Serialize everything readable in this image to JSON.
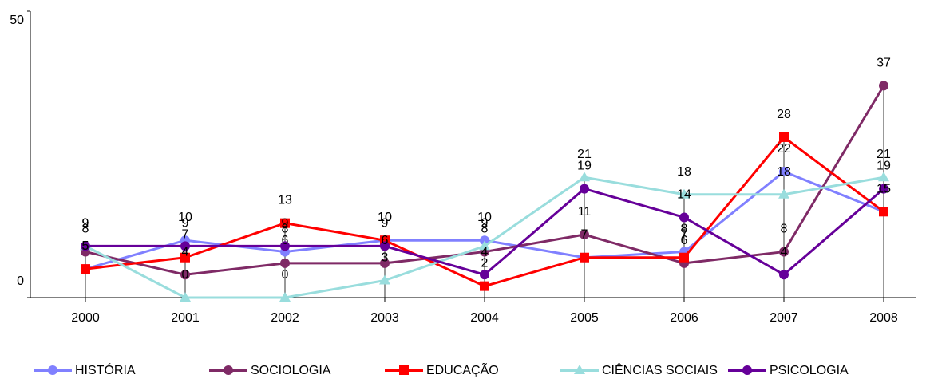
{
  "chart_data": {
    "type": "line",
    "title": "",
    "xlabel": "",
    "ylabel": "",
    "categories": [
      "2000",
      "2001",
      "2002",
      "2003",
      "2004",
      "2005",
      "2006",
      "2007",
      "2008"
    ],
    "ylim": [
      0,
      50
    ],
    "y_ticks": [
      "0",
      "50"
    ],
    "grid": false,
    "legend_position": "bottom",
    "series": [
      {
        "name": "HISTÓRIA",
        "color": "#8080ff",
        "marker": "circle",
        "values": [
          5,
          10,
          8,
          10,
          10,
          7,
          8,
          22,
          15
        ]
      },
      {
        "name": "SOCIOLOGIA",
        "color": "#7f2a66",
        "marker": "circle",
        "values": [
          8,
          4,
          6,
          6,
          8,
          11,
          6,
          8,
          37
        ]
      },
      {
        "name": "EDUCAÇÃO",
        "color": "#ff0000",
        "marker": "square",
        "values": [
          5,
          7,
          13,
          10,
          2,
          7,
          7,
          28,
          15
        ]
      },
      {
        "name": "CIÊNCIAS SOCIAIS",
        "color": "#99dddd",
        "marker": "triangle",
        "values": [
          9,
          0,
          0,
          3,
          9,
          21,
          18,
          18,
          21
        ]
      },
      {
        "name": "PSICOLOGIA",
        "color": "#660099",
        "marker": "circle",
        "values": [
          9,
          9,
          9,
          9,
          4,
          19,
          14,
          4,
          19
        ]
      }
    ]
  }
}
